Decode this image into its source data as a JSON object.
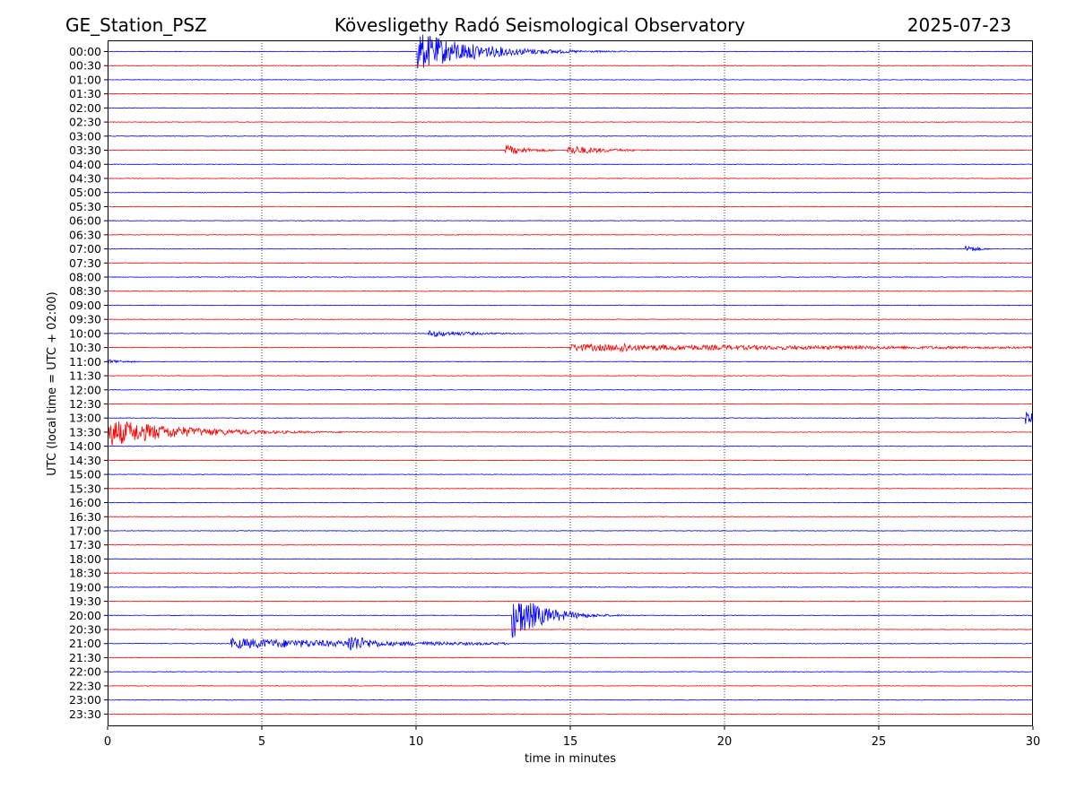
{
  "header": {
    "left": "GE_Station_PSZ",
    "center": "Kövesligethy Radó Seismological Observatory",
    "right": "2025-07-23"
  },
  "chart_data": {
    "type": "line",
    "title": "Kövesligethy Radó Seismological Observatory",
    "xlabel": "time in minutes",
    "ylabel": "UTC (local time = UTC + 02:00)",
    "xlim": [
      0,
      30
    ],
    "xticks": [
      "0",
      "5",
      "10",
      "15",
      "20",
      "25",
      "30"
    ],
    "grid": "vertical dotted lines at each x tick",
    "trace_colors": [
      "#0000ff",
      "#ff0000"
    ],
    "rows": [
      "00:00",
      "00:30",
      "01:00",
      "01:30",
      "02:00",
      "02:30",
      "03:00",
      "03:30",
      "04:00",
      "04:30",
      "05:00",
      "05:30",
      "06:00",
      "06:30",
      "07:00",
      "07:30",
      "08:00",
      "08:30",
      "09:00",
      "09:30",
      "10:00",
      "10:30",
      "11:00",
      "11:30",
      "12:00",
      "12:30",
      "13:00",
      "13:30",
      "14:00",
      "14:30",
      "15:00",
      "15:30",
      "16:00",
      "16:30",
      "17:00",
      "17:30",
      "18:00",
      "18:30",
      "19:00",
      "19:30",
      "20:00",
      "20:30",
      "21:00",
      "21:30",
      "22:00",
      "22:30",
      "23:00",
      "23:30"
    ],
    "events": [
      {
        "row": "00:00",
        "start_min": 10.05,
        "end_min": 19.0,
        "amp": 22,
        "decay": 1.9
      },
      {
        "row": "03:30",
        "start_min": 12.9,
        "end_min": 14.5,
        "amp": 6,
        "decay": 0.8
      },
      {
        "row": "03:30",
        "start_min": 14.9,
        "end_min": 18.0,
        "amp": 6,
        "decay": 1.2
      },
      {
        "row": "07:00",
        "start_min": 27.8,
        "end_min": 28.7,
        "amp": 5,
        "decay": 0.4
      },
      {
        "row": "10:00",
        "start_min": 10.4,
        "end_min": 13.5,
        "amp": 4,
        "decay": 1.5
      },
      {
        "row": "10:30",
        "start_min": 15.0,
        "end_min": 30.0,
        "amp": 4,
        "decay": 12.0
      },
      {
        "row": "10:30",
        "start_min": 16.6,
        "end_min": 17.6,
        "amp": 8,
        "decay": 0.5
      },
      {
        "row": "11:00",
        "start_min": 0.0,
        "end_min": 1.0,
        "amp": 3,
        "decay": 0.6
      },
      {
        "row": "13:00",
        "start_min": 29.75,
        "end_min": 30.0,
        "amp": 9,
        "decay": 0.6
      },
      {
        "row": "13:30",
        "start_min": 0.0,
        "end_min": 9.0,
        "amp": 16,
        "decay": 2.4
      },
      {
        "row": "20:00",
        "start_min": 13.1,
        "end_min": 19.0,
        "amp": 28,
        "decay": 1.0
      },
      {
        "row": "21:00",
        "start_min": 4.0,
        "end_min": 13.0,
        "amp": 6,
        "decay": 6.0
      },
      {
        "row": "21:00",
        "start_min": 7.8,
        "end_min": 9.5,
        "amp": 12,
        "decay": 0.8
      }
    ]
  }
}
